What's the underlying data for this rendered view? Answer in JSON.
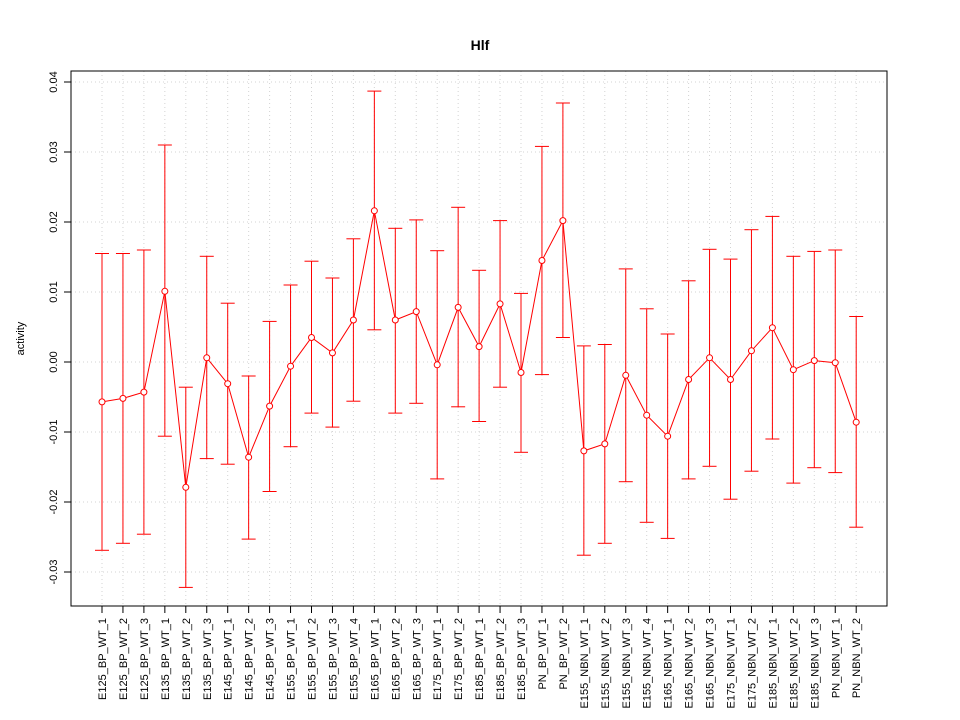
{
  "chart_data": {
    "type": "line",
    "title": "Hlf",
    "xlabel": "",
    "ylabel": "activity",
    "ylim": [
      -0.035,
      0.041
    ],
    "yticks": [
      -0.03,
      -0.02,
      -0.01,
      0.0,
      0.01,
      0.02,
      0.03,
      0.04
    ],
    "ytick_labels": [
      "-0.03",
      "-0.02",
      "-0.01",
      "0.00",
      "0.01",
      "0.02",
      "0.03",
      "0.04"
    ],
    "grid": true,
    "colors": {
      "series": "#ff0000",
      "grid": "#d3d3d3",
      "frame": "#000000"
    },
    "categories": [
      "E125_BP_WT_1",
      "E125_BP_WT_2",
      "E125_BP_WT_3",
      "E135_BP_WT_1",
      "E135_BP_WT_2",
      "E135_BP_WT_3",
      "E145_BP_WT_1",
      "E145_BP_WT_2",
      "E145_BP_WT_3",
      "E155_BP_WT_1",
      "E155_BP_WT_2",
      "E155_BP_WT_3",
      "E155_BP_WT_4",
      "E165_BP_WT_1",
      "E165_BP_WT_2",
      "E165_BP_WT_3",
      "E175_BP_WT_1",
      "E175_BP_WT_2",
      "E185_BP_WT_1",
      "E185_BP_WT_2",
      "E185_BP_WT_3",
      "PN_BP_WT_1",
      "PN_BP_WT_2",
      "E155_NBN_WT_1",
      "E155_NBN_WT_2",
      "E155_NBN_WT_3",
      "E155_NBN_WT_4",
      "E165_NBN_WT_1",
      "E165_NBN_WT_2",
      "E165_NBN_WT_3",
      "E175_NBN_WT_1",
      "E175_NBN_WT_2",
      "E185_NBN_WT_1",
      "E185_NBN_WT_2",
      "E185_NBN_WT_3",
      "PN_NBN_WT_1",
      "PN_NBN_WT_2"
    ],
    "series": [
      {
        "values": [
          -0.0057,
          -0.0052,
          -0.0043,
          0.0101,
          -0.0179,
          0.0006,
          -0.0031,
          -0.0136,
          -0.0063,
          -0.0006,
          0.0035,
          0.0013,
          0.006,
          0.0216,
          0.006,
          0.0072,
          -0.0004,
          0.0078,
          0.0022,
          0.0083,
          -0.0015,
          0.0145,
          0.0202,
          -0.0127,
          -0.0117,
          -0.0019,
          -0.0076,
          -0.0106,
          -0.0025,
          0.0006,
          -0.0025,
          0.0016,
          0.0049,
          -0.0011,
          0.0002,
          -0.0001,
          -0.0086
        ],
        "upper": [
          0.0155,
          0.0155,
          0.016,
          0.031,
          -0.0036,
          0.0151,
          0.0084,
          -0.002,
          0.0058,
          0.011,
          0.0144,
          0.012,
          0.0176,
          0.0387,
          0.0191,
          0.0203,
          0.0159,
          0.0221,
          0.0131,
          0.0202,
          0.0098,
          0.0308,
          0.037,
          0.0023,
          0.0025,
          0.0133,
          0.0076,
          0.004,
          0.0116,
          0.0161,
          0.0147,
          0.0189,
          0.0208,
          0.0151,
          0.0158,
          0.016,
          0.0065
        ],
        "lower": [
          -0.0269,
          -0.0259,
          -0.0246,
          -0.0106,
          -0.0322,
          -0.0138,
          -0.0146,
          -0.0253,
          -0.0185,
          -0.0121,
          -0.0073,
          -0.0093,
          -0.0056,
          0.0046,
          -0.0073,
          -0.0059,
          -0.0167,
          -0.0064,
          -0.0085,
          -0.0036,
          -0.0129,
          -0.0018,
          0.0035,
          -0.0276,
          -0.0259,
          -0.0171,
          -0.0229,
          -0.0252,
          -0.0167,
          -0.0149,
          -0.0196,
          -0.0156,
          -0.011,
          -0.0173,
          -0.0151,
          -0.0158,
          -0.0236
        ]
      }
    ]
  }
}
